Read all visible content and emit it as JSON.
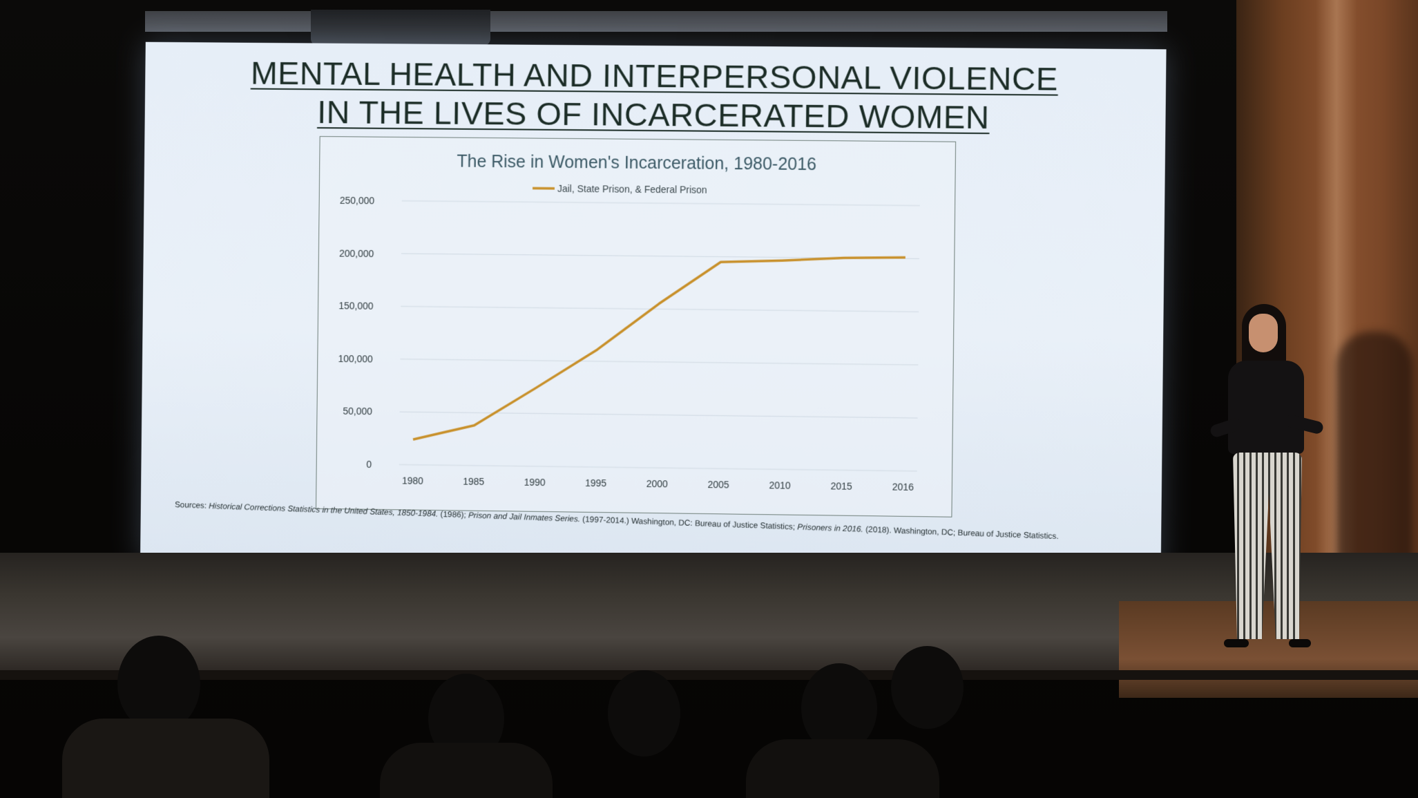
{
  "slide": {
    "title_line1": "MENTAL HEALTH AND INTERPERSONAL VIOLENCE",
    "title_line2": "IN THE LIVES OF INCARCERATED WOMEN",
    "sources_label": "Sources:",
    "sources_italic1": "Historical Corrections Statistics in the United States, 1850-1984.",
    "sources_text1": "(1986);",
    "sources_italic2": "Prison and Jail Inmates Series.",
    "sources_text2": "(1997-2014.) Washington, DC: Bureau of Justice Statistics;",
    "sources_italic3": "Prisoners in 2016.",
    "sources_text3": "(2018). Washington, DC; Bureau of Justice Statistics."
  },
  "chart_data": {
    "type": "line",
    "title": "The Rise in Women's Incarceration, 1980-2016",
    "xlabel": "",
    "ylabel": "",
    "categories": [
      "1980",
      "1985",
      "1990",
      "1995",
      "2000",
      "2005",
      "2010",
      "2015",
      "2016"
    ],
    "ylim": [
      0,
      250000
    ],
    "yticks": [
      "0",
      "50,000",
      "100,000",
      "150,000",
      "200,000",
      "250,000"
    ],
    "ytick_values": [
      0,
      50000,
      100000,
      150000,
      200000,
      250000
    ],
    "series": [
      {
        "name": "Jail, State Prison, & Federal Prison",
        "values": [
          24000,
          38000,
          74000,
          111000,
          155000,
          195000,
          197000,
          200000,
          201000
        ],
        "color": "#c8902a"
      }
    ],
    "grid": true,
    "legend_position": "top"
  }
}
